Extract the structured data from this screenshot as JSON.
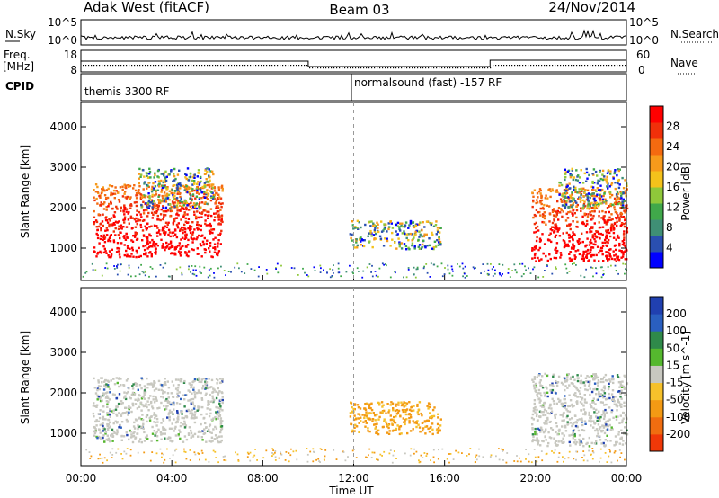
{
  "header": {
    "title_left": "Adak West (fitACF)",
    "title_center": "Beam 03",
    "title_right": "24/Nov/2014"
  },
  "top_panels": {
    "nsky_label": "N.Sky",
    "nsky_ticks": [
      "10^5",
      "10^0"
    ],
    "nsearch_label": "N.Search",
    "freq_label": "Freq.",
    "freq_unit": "[MHz]",
    "freq_ticks": [
      "18",
      "8"
    ],
    "nave_label": "Nave",
    "nave_ticks": [
      "60",
      "0"
    ],
    "cpid_label": "CPID",
    "cpid_segments": [
      {
        "label": "themis 3300 RF",
        "start_hour": 0
      },
      {
        "label": "normalsound (fast) -157 RF",
        "start_hour": 12
      }
    ]
  },
  "chart_data": [
    {
      "type": "heatmap",
      "name": "Power",
      "ylabel": "Slant Range [km]",
      "xlabel": "",
      "x_range_hours": [
        0,
        24
      ],
      "ylim": [
        200,
        4600
      ],
      "y_ticks": [
        "1000",
        "2000",
        "3000",
        "4000"
      ],
      "colorbar_label": "Power [dB]",
      "colorbar_ticks": [
        "4",
        "8",
        "12",
        "16",
        "20",
        "24",
        "28"
      ],
      "colorbar_colors": [
        "#0000ff",
        "#2a4fb0",
        "#3f8f75",
        "#40a84a",
        "#8fc83a",
        "#f4c21b",
        "#f79a1b",
        "#f46a10",
        "#f0300a",
        "#ff0000"
      ],
      "echo_regions": [
        {
          "t0": 0.5,
          "t1": 6.2,
          "r0": 800,
          "r1": 2600,
          "level": "high"
        },
        {
          "t0": 2.5,
          "t1": 5.8,
          "r0": 2000,
          "r1": 3000,
          "level": "medium"
        },
        {
          "t0": 11.8,
          "t1": 15.8,
          "r0": 1000,
          "r1": 1700,
          "level": "medium"
        },
        {
          "t0": 19.8,
          "t1": 24,
          "r0": 700,
          "r1": 2500,
          "level": "high"
        },
        {
          "t0": 21.0,
          "t1": 24,
          "r0": 2000,
          "r1": 3000,
          "level": "medium"
        }
      ]
    },
    {
      "type": "heatmap",
      "name": "Velocity",
      "ylabel": "Slant Range [km]",
      "xlabel": "Time UT",
      "x_range_hours": [
        0,
        24
      ],
      "x_ticks": [
        "00:00",
        "04:00",
        "08:00",
        "12:00",
        "16:00",
        "20:00",
        "00:00"
      ],
      "ylim": [
        200,
        4600
      ],
      "y_ticks": [
        "1000",
        "2000",
        "3000",
        "4000"
      ],
      "colorbar_label": "Velocity [m s^-1]",
      "colorbar_ticks": [
        "200",
        "100",
        "50",
        "15",
        "-15",
        "-50",
        "-100",
        "-200"
      ],
      "colorbar_colors": [
        "#2040b0",
        "#2a5fc0",
        "#2f8a4a",
        "#55b82e",
        "#c8c8c0",
        "#f6c12b",
        "#f39a14",
        "#f06d10",
        "#f03808"
      ],
      "echo_regions": [
        {
          "t0": 0.5,
          "t1": 6.2,
          "r0": 800,
          "r1": 2400,
          "level": "gray"
        },
        {
          "t0": 11.8,
          "t1": 15.8,
          "r0": 1000,
          "r1": 1800,
          "level": "orange"
        },
        {
          "t0": 19.8,
          "t1": 24,
          "r0": 700,
          "r1": 2500,
          "level": "gray"
        }
      ]
    }
  ]
}
